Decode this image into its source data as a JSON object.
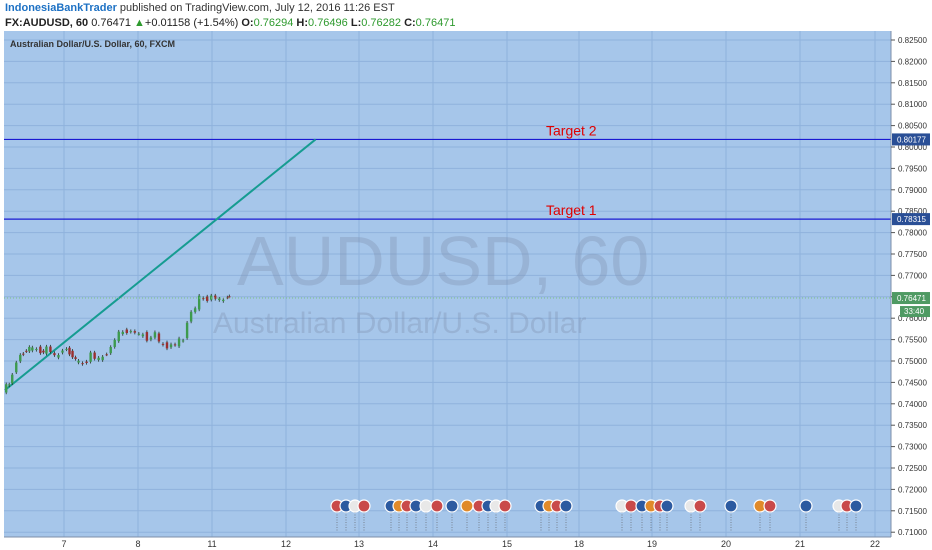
{
  "header": {
    "author": "IndonesiaBankTrader",
    "publish_text": " published on TradingView.com, July 12, 2016 11:26 EST",
    "symbol": "FX:AUDUSD, 60",
    "last": "0.76471",
    "change": "+0.01158 (+1.54%)",
    "o_label": "O:",
    "o_value": "0.76294",
    "h_label": "H:",
    "h_value": "0.76496",
    "l_label": "L:",
    "l_value": "0.76282",
    "c_label": "C:",
    "c_value": "0.76471"
  },
  "chart_name": "Australian Dollar/U.S. Dollar, 60, FXCM",
  "watermark": {
    "line1": "AUDUSD, 60",
    "line2": "Australian Dollar/U.S. Dollar"
  },
  "colors": {
    "background": "#a6c6ea",
    "grid": "#8fb2dc",
    "hline": "#1a1ad2",
    "trendline": "#169c91",
    "target_text": "#e00000",
    "price_tag": "#2a4f96",
    "current_tag": "#4f9a63"
  },
  "chart_data": {
    "type": "line",
    "title": "Australian Dollar/U.S. Dollar, 60, FXCM",
    "y_ticks": [
      "0.82500",
      "0.82000",
      "0.81500",
      "0.81000",
      "0.80500",
      "0.80000",
      "0.79500",
      "0.79000",
      "0.78500",
      "0.78000",
      "0.77500",
      "0.77000",
      "0.76500",
      "0.76000",
      "0.75500",
      "0.75000",
      "0.74500",
      "0.74000",
      "0.73500",
      "0.73000",
      "0.72500",
      "0.72000",
      "0.71500",
      "0.71000"
    ],
    "x_ticks": [
      "7",
      "8",
      "11",
      "12",
      "13",
      "14",
      "15",
      "18",
      "19",
      "20",
      "21",
      "22"
    ],
    "ylim": [
      0.71,
      0.825
    ],
    "series": [
      {
        "name": "AUDUSD",
        "x": [
          0.0,
          0.3,
          0.5,
          0.7,
          1.0,
          1.3,
          1.5,
          1.7,
          2.0,
          2.2,
          2.4,
          2.6,
          2.8,
          3.0,
          3.3,
          3.6,
          3.8,
          4.0,
          4.2,
          4.4,
          4.6,
          4.8,
          5.0,
          5.2,
          5.4,
          5.6,
          5.8,
          6.0,
          6.2,
          6.4,
          6.6,
          6.8,
          7.0,
          7.2,
          7.4,
          7.6,
          7.8,
          8.0,
          8.2,
          8.4,
          8.6,
          8.8,
          9.0,
          9.2,
          9.4,
          9.6,
          9.8,
          10.0,
          10.2,
          10.4,
          10.6,
          10.8,
          11.0,
          11.1,
          11.2
        ],
        "y": [
          0.7432,
          0.7448,
          0.7468,
          0.7502,
          0.7521,
          0.753,
          0.7526,
          0.7528,
          0.752,
          0.7531,
          0.7524,
          0.7508,
          0.7514,
          0.753,
          0.7521,
          0.7502,
          0.7495,
          0.7493,
          0.7501,
          0.7517,
          0.7508,
          0.7502,
          0.751,
          0.7521,
          0.753,
          0.7552,
          0.7563,
          0.7568,
          0.7571,
          0.7567,
          0.7569,
          0.7558,
          0.7562,
          0.7553,
          0.7552,
          0.757,
          0.754,
          0.7538,
          0.7535,
          0.7536,
          0.754,
          0.7547,
          0.7548,
          0.7595,
          0.7612,
          0.7626,
          0.7647,
          0.7645,
          0.7646,
          0.765,
          0.7648,
          0.764,
          0.7643,
          0.7654,
          0.76471
        ]
      }
    ],
    "horizontal_lines": [
      {
        "label": "Target 2",
        "value": 0.80177,
        "tag": "0.80177"
      },
      {
        "label": "Target 1",
        "value": 0.78315,
        "tag": "0.78315"
      }
    ],
    "current_price": {
      "tag": "0.76471",
      "countdown": "33:40"
    },
    "trendline": {
      "start_day": 0.0,
      "start_value": 0.7432,
      "end_day": 15.45,
      "end_value": 0.80177
    }
  }
}
